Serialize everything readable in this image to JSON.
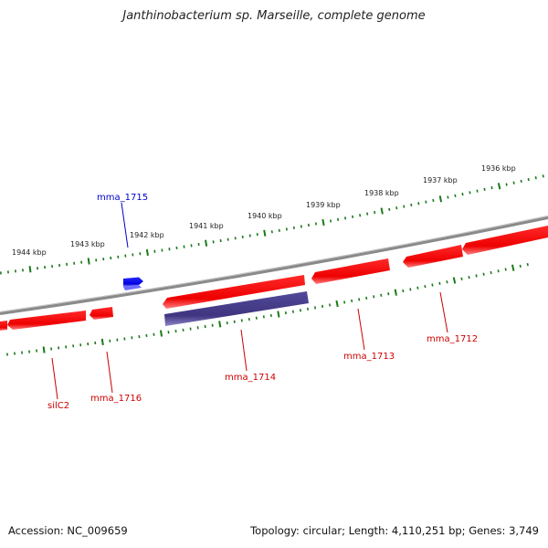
{
  "title": "Janthinobacterium sp. Marseille, complete genome",
  "footer": {
    "accession": "Accession: NC_009659",
    "summary": "Topology: circular; Length: 4,110,251 bp; Genes: 3,749"
  },
  "colors": {
    "forward_gene": "#ff0000",
    "reverse_gene": "#ff0000",
    "highlight_gene": "#4a3f8a",
    "label_forward": "#0000cc",
    "label_reverse": "#cc0000",
    "ticks": "#1a7a1a",
    "backbone": "#808080"
  },
  "scale": {
    "unit": "kbp",
    "labels": [
      "1944 kbp",
      "1943 kbp",
      "1942 kbp",
      "1941 kbp",
      "1940 kbp",
      "1939 kbp",
      "1938 kbp",
      "1937 kbp",
      "1936 kbp"
    ]
  },
  "genes": [
    {
      "name": "mma_1715",
      "strand": "+",
      "color": "#0000ff"
    },
    {
      "name": "silC2",
      "strand": "-",
      "color": "#ff0000"
    },
    {
      "name": "mma_1716",
      "strand": "-",
      "color": "#ff0000"
    },
    {
      "name": "mma_1714",
      "strand": "-",
      "color": "#4a3f8a"
    },
    {
      "name": "mma_1713",
      "strand": "-",
      "color": "#ff0000"
    },
    {
      "name": "mma_1712",
      "strand": "-",
      "color": "#ff0000"
    },
    {
      "name": "",
      "strand": "-",
      "color": "#ff0000"
    }
  ]
}
